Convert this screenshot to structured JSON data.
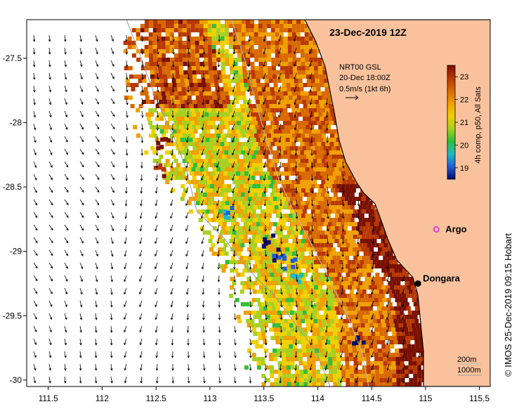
{
  "title": "23-Dec-2019 12Z",
  "current_legend": {
    "line1": "NRT00 GSL",
    "line2": "20-Dec 18:00Z",
    "line3": "0.5m/s (1kt 6h)"
  },
  "colorbar": {
    "label": "4h comp, p50, All Sats",
    "min": 18.5,
    "max": 23.5,
    "ticks": [
      "19",
      "20",
      "21",
      "22",
      "23"
    ],
    "colors": [
      "#0a0a6e",
      "#1e5fd8",
      "#1fb8c8",
      "#2fbf3a",
      "#a8d020",
      "#f0d000",
      "#f0a000",
      "#d86a00",
      "#b83800",
      "#7a1000"
    ]
  },
  "places": [
    {
      "name": "Argo",
      "lon": 115.1,
      "lat": -28.83,
      "marker": "magenta-star"
    },
    {
      "name": "Dongara",
      "lon": 114.93,
      "lat": -29.25,
      "marker": "black-dot"
    }
  ],
  "contours": {
    "label_200": "200m",
    "label_1000": "1000m"
  },
  "axes": {
    "lon_ticks": [
      "111.5",
      "112",
      "112.5",
      "113",
      "113.5",
      "114",
      "114.5",
      "115",
      "115.5"
    ],
    "lat_ticks": [
      "-27.5",
      "-28",
      "-28.5",
      "-29",
      "-29.5",
      "-30"
    ],
    "lon_range": [
      111.3,
      115.6
    ],
    "lat_range": [
      -30.05,
      -27.2
    ]
  },
  "credit": "© IMOS 25-Dec-2019 09:15 Hobart",
  "colors": {
    "land": "#f9c29d",
    "ocean": "#ffffff",
    "argo": "#e040e0"
  }
}
